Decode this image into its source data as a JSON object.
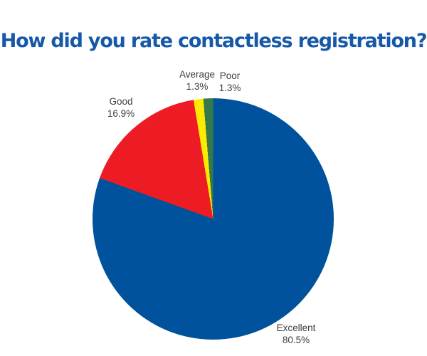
{
  "title": "How did you rate contactless registration?",
  "colors": {
    "title": "#1659A8",
    "label_text": "#3D3D3D",
    "background": "#FFFFFF"
  },
  "chart_data": {
    "type": "pie",
    "title": "How did you rate contactless registration?",
    "start_angle_deg": 0,
    "direction": "clockwise",
    "legend_position": "none",
    "labels_position": "outside",
    "slices": [
      {
        "label": "Excellent",
        "value": 80.5,
        "pct_label": "80.5%",
        "color": "#00529D"
      },
      {
        "label": "Good",
        "value": 16.9,
        "pct_label": "16.9%",
        "color": "#ED1C24"
      },
      {
        "label": "Average",
        "value": 1.3,
        "pct_label": "1.3%",
        "color": "#FCEA00"
      },
      {
        "label": "Poor",
        "value": 1.3,
        "pct_label": "1.3%",
        "color": "#35794A"
      }
    ]
  }
}
